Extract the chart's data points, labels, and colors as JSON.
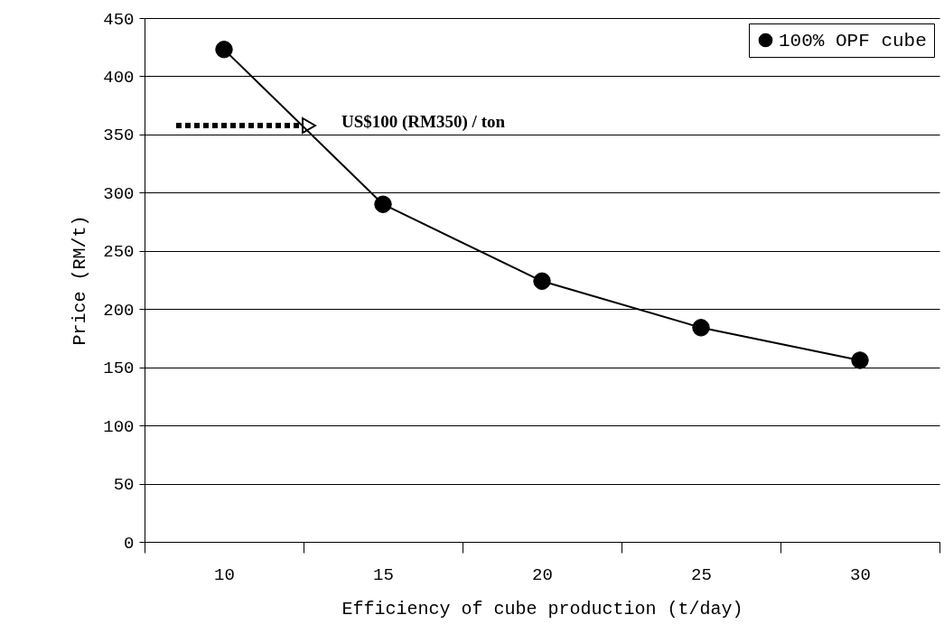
{
  "chart_data": {
    "type": "line",
    "xlabel": "Efficiency of cube production (t/day)",
    "ylabel": "Price (RM/t)",
    "categories": [
      "10",
      "15",
      "20",
      "25",
      "30"
    ],
    "series": [
      {
        "name": "100% OPF cube",
        "color": "#000000",
        "values": [
          423,
          290,
          224,
          184,
          156
        ]
      }
    ],
    "ylim": [
      0,
      450
    ],
    "yticks": [
      0,
      50,
      100,
      150,
      200,
      250,
      300,
      350,
      400,
      450
    ],
    "grid": "y",
    "legend": "top right",
    "marker": "circle",
    "line_style": "solid",
    "annotations": [
      "US$100 (RM350) / ton"
    ]
  }
}
